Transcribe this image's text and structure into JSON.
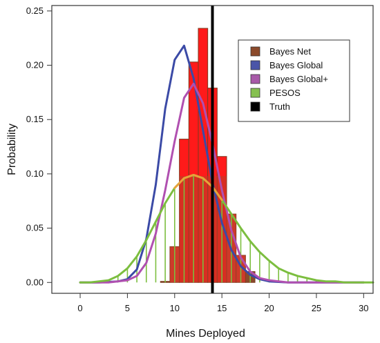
{
  "chart_data": {
    "type": "bar",
    "xlabel": "Mines Deployed",
    "ylabel": "Probability",
    "xlim": [
      -3,
      31
    ],
    "ylim": [
      -0.01,
      0.255
    ],
    "x_ticks": [
      0,
      5,
      10,
      15,
      20,
      25,
      30
    ],
    "y_ticks": [
      0.0,
      0.05,
      0.1,
      0.15,
      0.2,
      0.25
    ],
    "x_tick_labels": [
      "0",
      "5",
      "10",
      "15",
      "20",
      "25",
      "30"
    ],
    "y_tick_labels": [
      "0.00",
      "0.05",
      "0.10",
      "0.15",
      "0.20",
      "0.25"
    ],
    "grid": false,
    "legend_position": "top-right",
    "series": [
      {
        "name": "Bayes Net",
        "kind": "bar",
        "color": "#8b4a2b",
        "highlight_color": "#ff1a1a",
        "x": [
          9,
          10,
          11,
          12,
          13,
          14,
          15,
          16,
          17,
          18
        ],
        "values": [
          0.001,
          0.033,
          0.132,
          0.203,
          0.234,
          0.179,
          0.116,
          0.063,
          0.025,
          0.01
        ]
      },
      {
        "name": "Bayes Global",
        "kind": "line",
        "color": "#3b4aa6",
        "x": [
          0,
          2,
          4,
          5,
          6,
          7,
          8,
          9,
          10,
          11,
          12,
          13,
          14,
          15,
          16,
          17,
          18,
          19,
          20,
          22,
          25,
          30
        ],
        "values": [
          0,
          0,
          0.001,
          0.003,
          0.012,
          0.04,
          0.09,
          0.16,
          0.205,
          0.218,
          0.188,
          0.14,
          0.092,
          0.055,
          0.03,
          0.015,
          0.007,
          0.003,
          0.001,
          0,
          0,
          0
        ]
      },
      {
        "name": "Bayes Global+",
        "kind": "line",
        "color": "#b050b0",
        "x": [
          0,
          3,
          5,
          6,
          7,
          8,
          9,
          10,
          11,
          12,
          13,
          14,
          15,
          16,
          17,
          18,
          19,
          20,
          22,
          25,
          30
        ],
        "values": [
          0,
          0,
          0.002,
          0.006,
          0.018,
          0.045,
          0.085,
          0.13,
          0.17,
          0.183,
          0.165,
          0.128,
          0.085,
          0.048,
          0.023,
          0.01,
          0.004,
          0.002,
          0,
          0,
          0
        ]
      },
      {
        "name": "PESOS",
        "kind": "line",
        "color": "#7cbe3f",
        "curve_color_peak": "#e8a23a",
        "x": [
          0,
          1,
          2,
          3,
          4,
          5,
          6,
          7,
          8,
          9,
          10,
          11,
          12,
          13,
          14,
          15,
          16,
          17,
          18,
          19,
          20,
          21,
          22,
          23,
          24,
          25,
          26,
          27,
          28,
          29,
          30,
          31
        ],
        "values": [
          0.0,
          0.0,
          0.001,
          0.002,
          0.006,
          0.013,
          0.024,
          0.039,
          0.056,
          0.073,
          0.087,
          0.096,
          0.099,
          0.096,
          0.088,
          0.076,
          0.063,
          0.05,
          0.038,
          0.028,
          0.02,
          0.013,
          0.009,
          0.006,
          0.004,
          0.002,
          0.001,
          0.001,
          0.0,
          0.0,
          0.0,
          0.0
        ]
      },
      {
        "name": "Truth",
        "kind": "vline",
        "color": "#000000",
        "x": 14
      }
    ]
  }
}
